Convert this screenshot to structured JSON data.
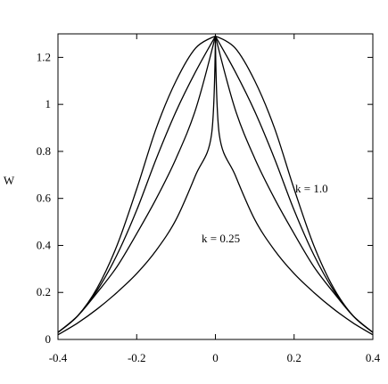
{
  "chart_data": {
    "type": "line",
    "title": "",
    "xlabel": "",
    "ylabel": "W",
    "xlim": [
      -0.4,
      0.4
    ],
    "ylim": [
      0,
      1.3
    ],
    "grid": false,
    "x_ticks": [
      "-0.4",
      "-0.2",
      "0",
      "0.2",
      "0.4"
    ],
    "y_ticks": [
      "0",
      "0.2",
      "0.4",
      "0.6",
      "0.8",
      "1",
      "1.2"
    ],
    "annotations": [
      {
        "text": "k = 1.0"
      },
      {
        "text": "k = 0.25"
      }
    ],
    "series": [
      {
        "x": [
          -0.4,
          -0.35,
          -0.3,
          -0.25,
          -0.2,
          -0.15,
          -0.1,
          -0.05,
          0,
          0.05,
          0.1,
          0.15,
          0.2,
          0.25,
          0.3,
          0.35,
          0.4
        ],
        "y": [
          0.03,
          0.1,
          0.22,
          0.4,
          0.64,
          0.9,
          1.1,
          1.24,
          1.29,
          1.24,
          1.1,
          0.9,
          0.64,
          0.4,
          0.22,
          0.1,
          0.03
        ]
      },
      {
        "x": [
          -0.4,
          -0.35,
          -0.3,
          -0.25,
          -0.2,
          -0.15,
          -0.1,
          -0.05,
          0,
          0.05,
          0.1,
          0.15,
          0.2,
          0.25,
          0.3,
          0.35,
          0.4
        ],
        "y": [
          0.03,
          0.1,
          0.21,
          0.36,
          0.55,
          0.77,
          0.97,
          1.14,
          1.29,
          1.14,
          0.97,
          0.77,
          0.55,
          0.36,
          0.21,
          0.1,
          0.03
        ]
      },
      {
        "x": [
          -0.4,
          -0.35,
          -0.3,
          -0.25,
          -0.2,
          -0.15,
          -0.1,
          -0.05,
          0,
          0.05,
          0.1,
          0.15,
          0.2,
          0.25,
          0.3,
          0.35,
          0.4
        ],
        "y": [
          0.03,
          0.1,
          0.2,
          0.31,
          0.45,
          0.6,
          0.77,
          0.98,
          1.29,
          0.98,
          0.77,
          0.6,
          0.45,
          0.31,
          0.2,
          0.1,
          0.03
        ]
      },
      {
        "x": [
          -0.4,
          -0.35,
          -0.3,
          -0.25,
          -0.2,
          -0.15,
          -0.1,
          -0.05,
          -0.01,
          0,
          0.01,
          0.05,
          0.1,
          0.15,
          0.2,
          0.25,
          0.3,
          0.35,
          0.4
        ],
        "y": [
          0.02,
          0.07,
          0.13,
          0.2,
          0.28,
          0.38,
          0.51,
          0.7,
          0.87,
          1.29,
          0.87,
          0.7,
          0.51,
          0.38,
          0.28,
          0.2,
          0.13,
          0.07,
          0.02
        ]
      }
    ]
  }
}
